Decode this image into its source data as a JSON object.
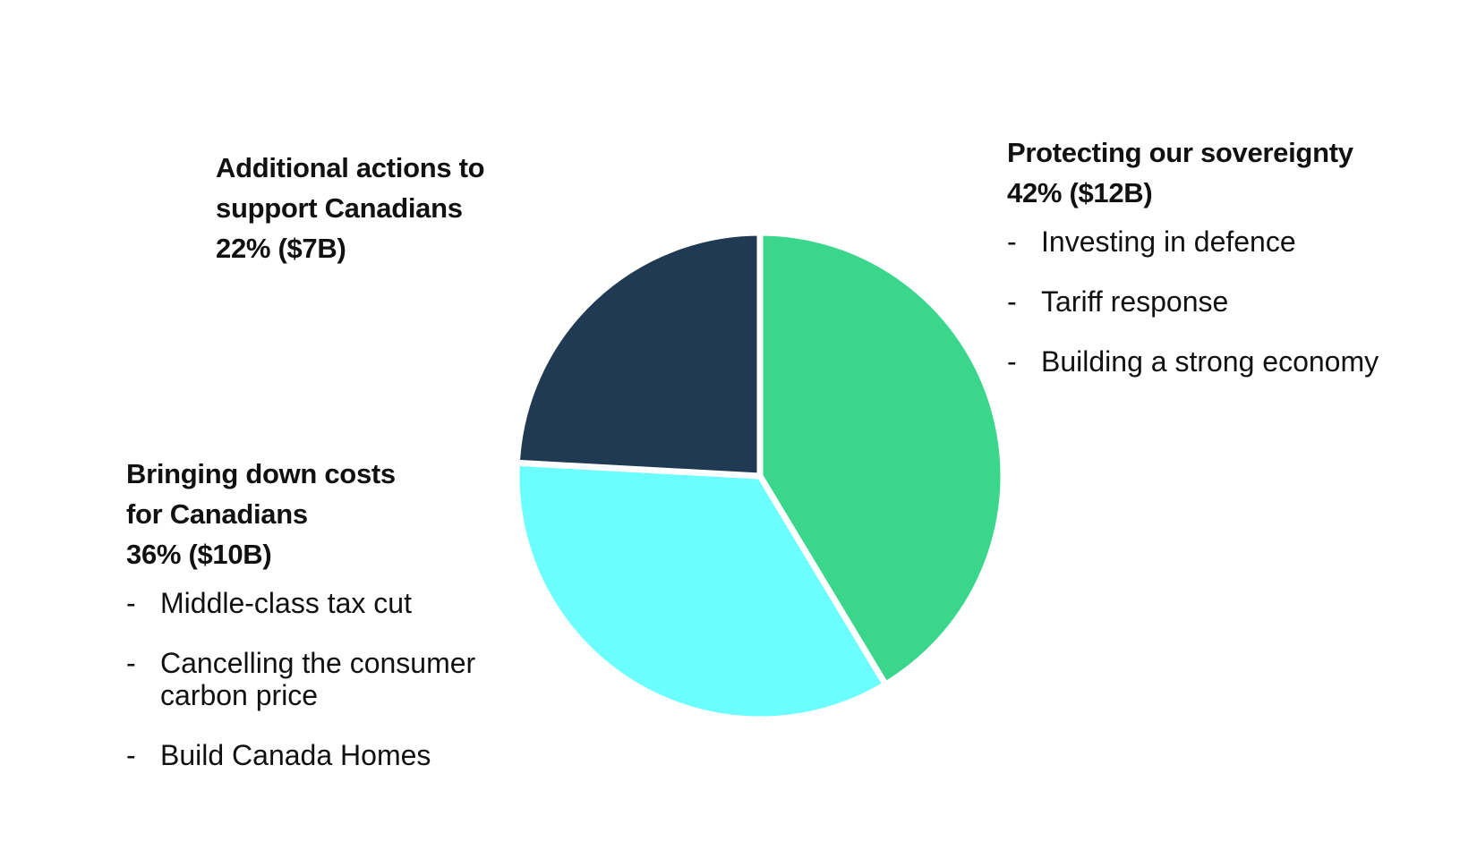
{
  "chart_data": {
    "type": "pie",
    "unit": "$B",
    "start_angle": "12 o'clock",
    "direction": "clockwise",
    "slices": [
      {
        "label_lines": [
          "Protecting our sovereignty"
        ],
        "value_text": "42% ($12B)",
        "percent": 42,
        "value": 12,
        "color": "#39d68c",
        "items": [
          "Investing in defence",
          "Tariff response",
          "Building a strong economy"
        ]
      },
      {
        "label_lines": [
          "Bringing down costs",
          "for Canadians"
        ],
        "value_text": "36% ($10B)",
        "percent": 36,
        "value": 10,
        "color": "#6bffff",
        "items": [
          [
            "Middle-class tax cut"
          ],
          [
            "Cancelling the consumer",
            "carbon price"
          ],
          [
            "Build Canada Homes"
          ]
        ]
      },
      {
        "label_lines": [
          "Additional actions to",
          "support Canadians"
        ],
        "value_text": "22% ($7B)",
        "percent": 22,
        "value": 7,
        "color": "#1f3a52",
        "items": []
      }
    ],
    "bullet": "-"
  }
}
